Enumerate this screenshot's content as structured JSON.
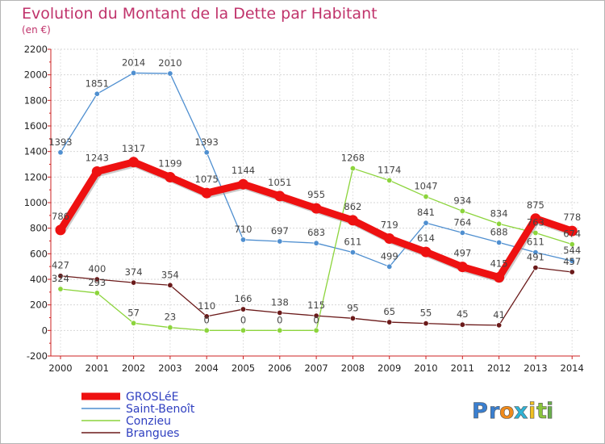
{
  "chart_data": {
    "type": "line",
    "title": "Evolution du Montant de la Dette par Habitant",
    "subtitle": "(en €)",
    "xlabel": "",
    "ylabel": "",
    "ylim": [
      -200,
      2200
    ],
    "y_ticks": [
      -200,
      0,
      200,
      400,
      600,
      800,
      1000,
      1200,
      1400,
      1600,
      1800,
      2000,
      2200
    ],
    "grid": true,
    "legend_position": "bottom-left",
    "categories": [
      "2000",
      "2001",
      "2002",
      "2003",
      "2004",
      "2005",
      "2006",
      "2007",
      "2008",
      "2009",
      "2010",
      "2011",
      "2012",
      "2013",
      "2014"
    ],
    "series": [
      {
        "name": "GROSLéE",
        "color": "#ee1111",
        "emphasis": true,
        "values": [
          786,
          1243,
          1317,
          1199,
          1075,
          1144,
          1051,
          955,
          862,
          719,
          614,
          497,
          415,
          875,
          778
        ]
      },
      {
        "name": "Saint-Benoît",
        "color": "#4f8fd0",
        "values": [
          1393,
          1851,
          2014,
          2010,
          1393,
          710,
          697,
          683,
          611,
          499,
          841,
          764,
          688,
          611,
          544
        ]
      },
      {
        "name": "Conzieu",
        "color": "#8cd43c",
        "values": [
          324,
          293,
          57,
          23,
          0,
          0,
          0,
          0,
          1268,
          1174,
          1047,
          934,
          834,
          763,
          674
        ]
      },
      {
        "name": "Brangues",
        "color": "#6b1a1a",
        "values": [
          427,
          400,
          374,
          354,
          110,
          166,
          138,
          115,
          95,
          65,
          55,
          45,
          41,
          491,
          457
        ]
      }
    ],
    "value_labels": {
      "GROSLéE": [
        "786",
        "1243",
        "1317",
        "1199",
        "1075",
        "1144",
        "1051",
        "955",
        "862",
        "719",
        "614",
        "497",
        "415",
        "875",
        "778"
      ],
      "Saint-Benoît": [
        "1393",
        "1851",
        "2014",
        "2010",
        "1393",
        "710",
        "697",
        "683",
        "611",
        "499",
        "841",
        "764",
        "688",
        "611",
        "544"
      ],
      "Conzieu": [
        "324",
        "293",
        "57",
        "23",
        "0",
        "0",
        "0",
        "0",
        "1268",
        "1174",
        "1047",
        "934",
        "834",
        "763",
        "674"
      ],
      "Brangues": [
        "427",
        "400",
        "374",
        "354",
        "110",
        "166",
        "138",
        "115",
        "95",
        "65",
        "55",
        "45",
        "41",
        "491",
        "457"
      ]
    }
  },
  "logo": {
    "letters": [
      "P",
      "r",
      "o",
      "x",
      "i",
      "t",
      "i"
    ],
    "colors": [
      "#3a7fd0",
      "#3a7fd0",
      "#f08a1a",
      "#2fb3d6",
      "#f0c020",
      "#8ac43c",
      "#6ab04c"
    ]
  }
}
